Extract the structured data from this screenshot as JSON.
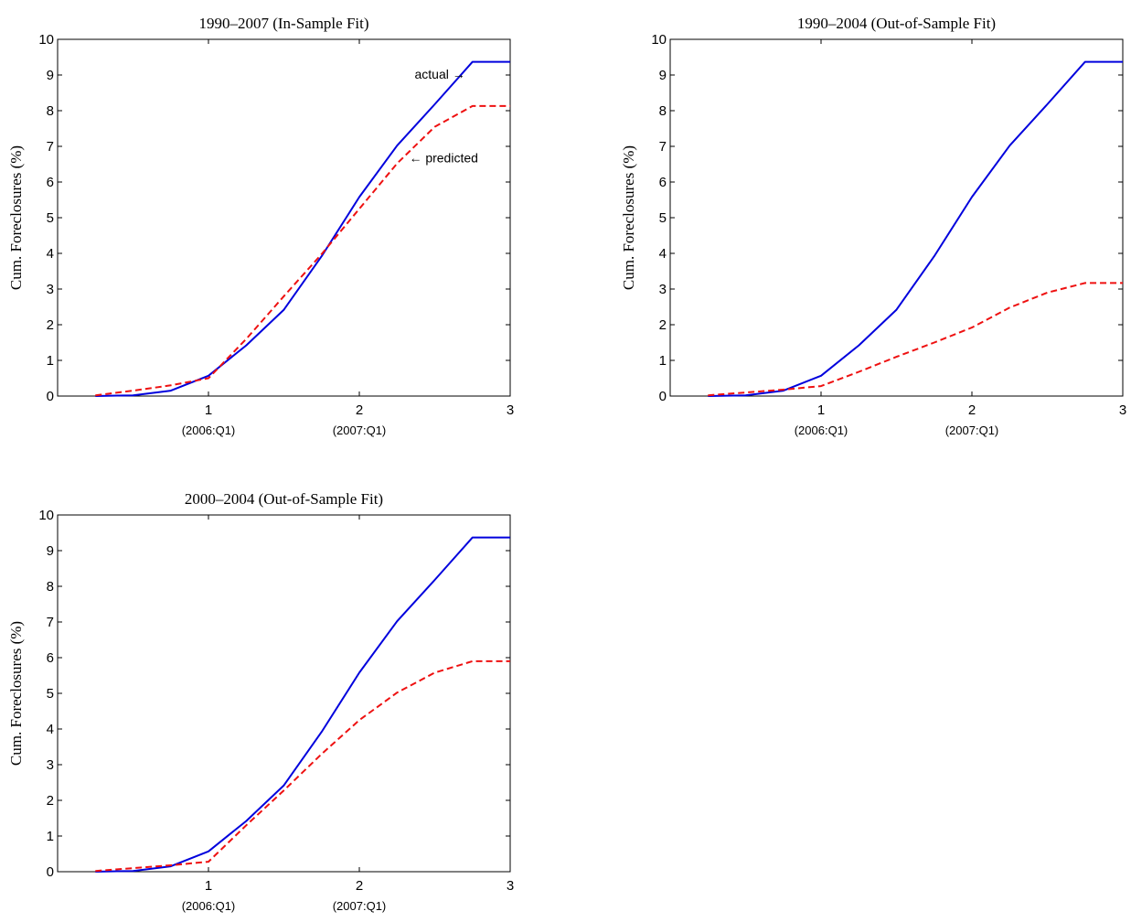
{
  "colors": {
    "actual": "#0000dd",
    "predicted": "#ee1111",
    "axes": "#000000"
  },
  "chart_data": [
    {
      "type": "line",
      "title": "1990–2007 (In-Sample Fit)",
      "xlabel": "",
      "ylabel": "Cum. Foreclosures (%)",
      "xlim": [
        0,
        3
      ],
      "ylim": [
        0,
        10
      ],
      "xticks": [
        {
          "value": 1,
          "label": "1",
          "sublabel": "(2006:Q1)"
        },
        {
          "value": 2,
          "label": "2",
          "sublabel": "(2007:Q1)"
        },
        {
          "value": 3,
          "label": "3",
          "sublabel": ""
        }
      ],
      "yticks": [
        "0",
        "1",
        "2",
        "3",
        "4",
        "5",
        "6",
        "7",
        "8",
        "9",
        "10"
      ],
      "x": [
        0.25,
        0.5,
        0.75,
        1.0,
        1.25,
        1.5,
        1.75,
        2.0,
        2.25,
        2.5,
        2.75,
        3.0
      ],
      "series": [
        {
          "name": "actual",
          "style": "solid",
          "values": [
            0.0,
            0.02,
            0.15,
            0.57,
            1.42,
            2.42,
            3.92,
            5.58,
            7.02,
            8.18,
            9.37,
            9.37
          ]
        },
        {
          "name": "predicted",
          "style": "dashed",
          "values": [
            0.02,
            0.15,
            0.3,
            0.5,
            1.6,
            2.8,
            3.98,
            5.25,
            6.52,
            7.55,
            8.13,
            8.13
          ]
        }
      ],
      "annotations": [
        {
          "text": "actual →",
          "x": 2.75,
          "y": 8.9,
          "anchor": "end"
        },
        {
          "text": "← predicted",
          "x": 2.33,
          "y": 6.55,
          "anchor": "start"
        }
      ]
    },
    {
      "type": "line",
      "title": "1990–2004 (Out-of-Sample Fit)",
      "xlabel": "",
      "ylabel": "Cum. Foreclosures (%)",
      "xlim": [
        0,
        3
      ],
      "ylim": [
        0,
        10
      ],
      "xticks": [
        {
          "value": 1,
          "label": "1",
          "sublabel": "(2006:Q1)"
        },
        {
          "value": 2,
          "label": "2",
          "sublabel": "(2007:Q1)"
        },
        {
          "value": 3,
          "label": "3",
          "sublabel": ""
        }
      ],
      "yticks": [
        "0",
        "1",
        "2",
        "3",
        "4",
        "5",
        "6",
        "7",
        "8",
        "9",
        "10"
      ],
      "x": [
        0.25,
        0.5,
        0.75,
        1.0,
        1.25,
        1.5,
        1.75,
        2.0,
        2.25,
        2.5,
        2.75,
        3.0
      ],
      "series": [
        {
          "name": "actual",
          "style": "solid",
          "values": [
            0.0,
            0.02,
            0.15,
            0.57,
            1.42,
            2.42,
            3.92,
            5.58,
            7.02,
            8.18,
            9.37,
            9.37
          ]
        },
        {
          "name": "predicted",
          "style": "dashed",
          "values": [
            0.02,
            0.1,
            0.18,
            0.28,
            0.68,
            1.1,
            1.5,
            1.92,
            2.48,
            2.9,
            3.17,
            3.17
          ]
        }
      ],
      "annotations": []
    },
    {
      "type": "line",
      "title": "2000–2004 (Out-of-Sample Fit)",
      "xlabel": "",
      "ylabel": "Cum. Foreclosures (%)",
      "xlim": [
        0,
        3
      ],
      "ylim": [
        0,
        10
      ],
      "xticks": [
        {
          "value": 1,
          "label": "1",
          "sublabel": "(2006:Q1)"
        },
        {
          "value": 2,
          "label": "2",
          "sublabel": "(2007:Q1)"
        },
        {
          "value": 3,
          "label": "3",
          "sublabel": ""
        }
      ],
      "yticks": [
        "0",
        "1",
        "2",
        "3",
        "4",
        "5",
        "6",
        "7",
        "8",
        "9",
        "10"
      ],
      "x": [
        0.25,
        0.5,
        0.75,
        1.0,
        1.25,
        1.5,
        1.75,
        2.0,
        2.25,
        2.5,
        2.75,
        3.0
      ],
      "series": [
        {
          "name": "actual",
          "style": "solid",
          "values": [
            0.0,
            0.02,
            0.15,
            0.57,
            1.42,
            2.42,
            3.92,
            5.58,
            7.02,
            8.18,
            9.37,
            9.37
          ]
        },
        {
          "name": "predicted",
          "style": "dashed",
          "values": [
            0.02,
            0.1,
            0.18,
            0.28,
            1.3,
            2.28,
            3.3,
            4.25,
            5.02,
            5.58,
            5.9,
            5.9
          ]
        }
      ],
      "annotations": []
    }
  ]
}
